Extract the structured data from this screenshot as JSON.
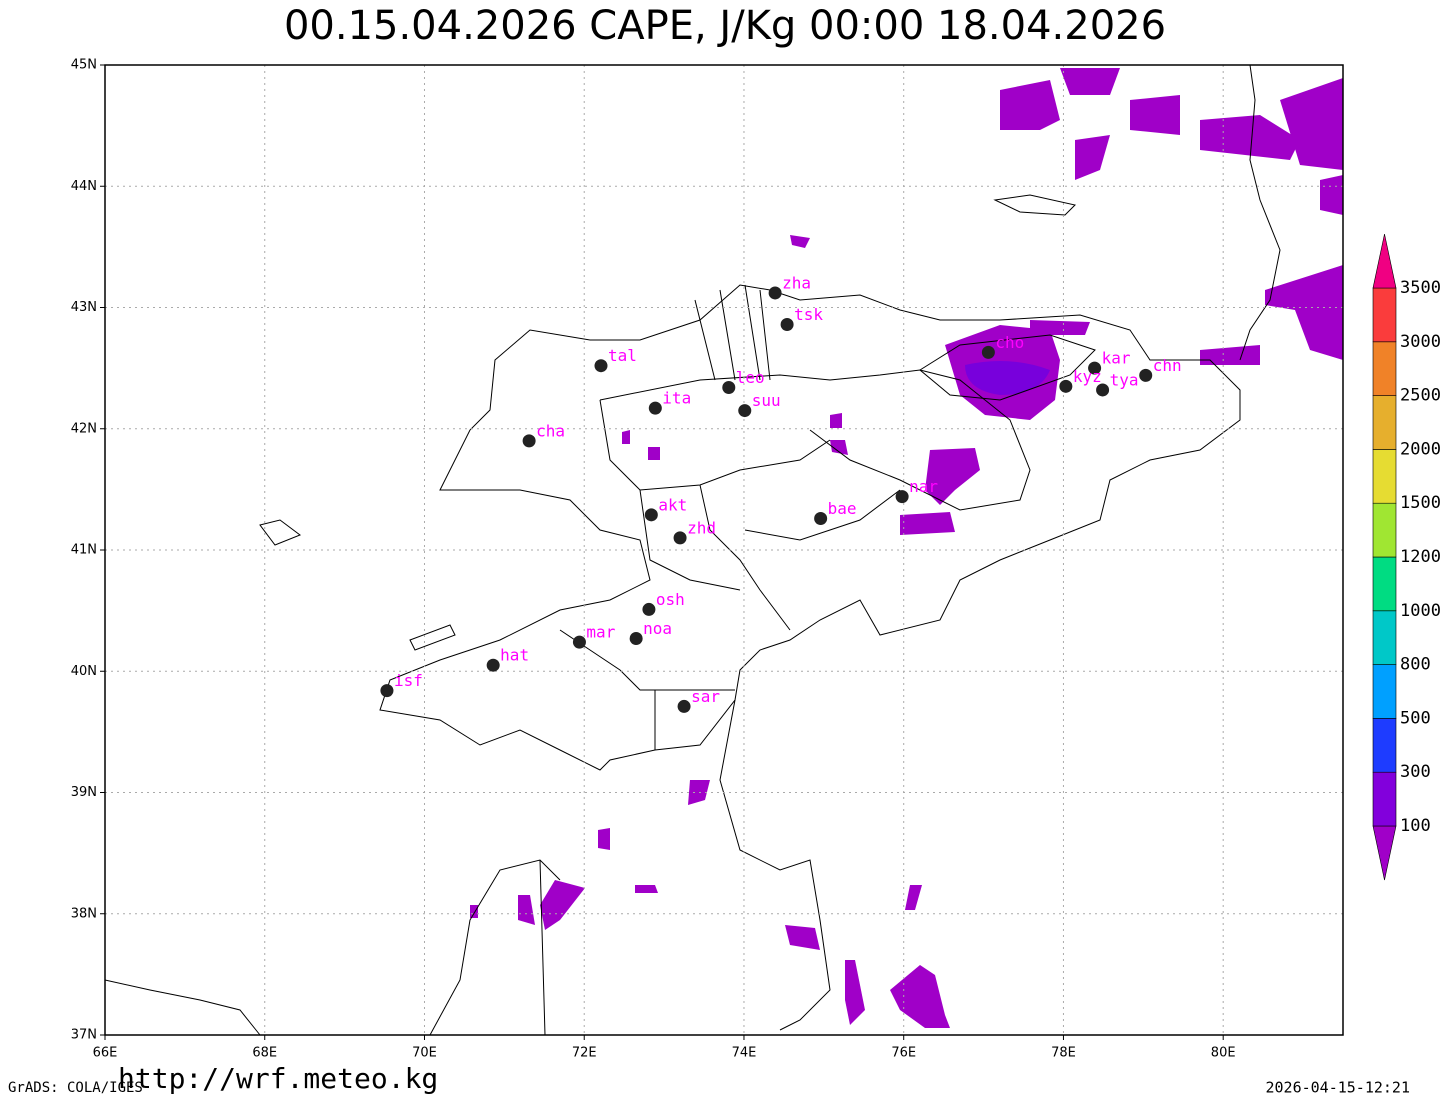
{
  "title": "00.15.04.2026 CAPE, J/Kg 00:00 18.04.2026",
  "map": {
    "xlim": [
      66,
      81.5
    ],
    "ylim": [
      37,
      45
    ],
    "xticks": [
      {
        "value": 66,
        "label": "66E"
      },
      {
        "value": 68,
        "label": "68E"
      },
      {
        "value": 70,
        "label": "70E"
      },
      {
        "value": 72,
        "label": "72E"
      },
      {
        "value": 74,
        "label": "74E"
      },
      {
        "value": 76,
        "label": "76E"
      },
      {
        "value": 78,
        "label": "78E"
      },
      {
        "value": 80,
        "label": "80E"
      }
    ],
    "yticks": [
      {
        "value": 37,
        "label": "37N"
      },
      {
        "value": 38,
        "label": "38N"
      },
      {
        "value": 39,
        "label": "39N"
      },
      {
        "value": 40,
        "label": "40N"
      },
      {
        "value": 41,
        "label": "41N"
      },
      {
        "value": 42,
        "label": "42N"
      },
      {
        "value": 43,
        "label": "43N"
      },
      {
        "value": 44,
        "label": "44N"
      },
      {
        "value": 45,
        "label": "45N"
      }
    ],
    "grid": true,
    "stations": [
      {
        "label": "zha",
        "lon": 74.39,
        "lat": 43.12
      },
      {
        "label": "tsk",
        "lon": 74.54,
        "lat": 42.86
      },
      {
        "label": "tal",
        "lon": 72.21,
        "lat": 42.52
      },
      {
        "label": "leo",
        "lon": 73.81,
        "lat": 42.34
      },
      {
        "label": "ita",
        "lon": 72.89,
        "lat": 42.17
      },
      {
        "label": "suu",
        "lon": 74.01,
        "lat": 42.15
      },
      {
        "label": "cha",
        "lon": 71.31,
        "lat": 41.9
      },
      {
        "label": "cho",
        "lon": 77.06,
        "lat": 42.63
      },
      {
        "label": "kar",
        "lon": 78.39,
        "lat": 42.5
      },
      {
        "label": "kyz",
        "lon": 78.03,
        "lat": 42.35
      },
      {
        "label": "tya",
        "lon": 78.49,
        "lat": 42.32
      },
      {
        "label": "chn",
        "lon": 79.03,
        "lat": 42.44
      },
      {
        "label": "nar",
        "lon": 75.98,
        "lat": 41.44
      },
      {
        "label": "bae",
        "lon": 74.96,
        "lat": 41.26
      },
      {
        "label": "akt",
        "lon": 72.84,
        "lat": 41.29
      },
      {
        "label": "zhd",
        "lon": 73.2,
        "lat": 41.1
      },
      {
        "label": "osh",
        "lon": 72.81,
        "lat": 40.51
      },
      {
        "label": "mar",
        "lon": 71.94,
        "lat": 40.24
      },
      {
        "label": "noa",
        "lon": 72.65,
        "lat": 40.27
      },
      {
        "label": "hat",
        "lon": 70.86,
        "lat": 40.05
      },
      {
        "label": "isf",
        "lon": 69.53,
        "lat": 39.84
      },
      {
        "label": "sar",
        "lon": 73.25,
        "lat": 39.71
      }
    ]
  },
  "colorbar": {
    "levels": [
      100,
      300,
      500,
      800,
      1000,
      1200,
      1500,
      2000,
      2500,
      3000,
      3500
    ],
    "colors": [
      "#a000c8",
      "#8200dc",
      "#1e3cff",
      "#00a0ff",
      "#00c8c8",
      "#00dc82",
      "#a0e632",
      "#e6dc32",
      "#e6af2d",
      "#f08228",
      "#fa3c3c",
      "#f00082"
    ]
  },
  "footer": {
    "software": "GrADS: COLA/IGES",
    "url": "http://wrf.meteo.kg",
    "timestamp": "2026-04-15-12:21"
  }
}
